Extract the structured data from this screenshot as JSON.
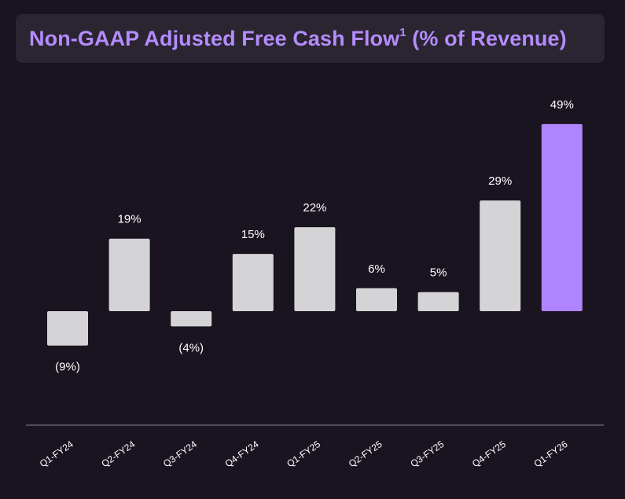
{
  "header": {
    "title_main": "Non-GAAP Adjusted Free Cash Flow",
    "title_sup": "1",
    "title_end": " (% of Revenue)"
  },
  "colors": {
    "background": "#1a1421",
    "title_box": "#2a2530",
    "title_text": "#b48cff",
    "bar_default": "#d4d4d6",
    "bar_highlight": "#b083ff",
    "axis_line": "#8a8590",
    "label_text": "#ffffff"
  },
  "chart_data": {
    "type": "bar",
    "title": "Non-GAAP Adjusted Free Cash Flow1 (% of Revenue)",
    "xlabel": "",
    "ylabel": "",
    "unit": "% of Revenue",
    "categories": [
      "Q1-FY24",
      "Q2-FY24",
      "Q3-FY24",
      "Q4-FY24",
      "Q1-FY25",
      "Q2-FY25",
      "Q3-FY25",
      "Q4-FY25",
      "Q1-FY26"
    ],
    "values": [
      -9,
      19,
      -4,
      15,
      22,
      6,
      5,
      29,
      49
    ],
    "labels": [
      "(9%)",
      "19%",
      "(4%)",
      "15%",
      "22%",
      "6%",
      "5%",
      "29%",
      "49%"
    ],
    "highlight_index": 8,
    "ylim": [
      -30,
      55
    ],
    "grid": false,
    "legend": "none"
  }
}
